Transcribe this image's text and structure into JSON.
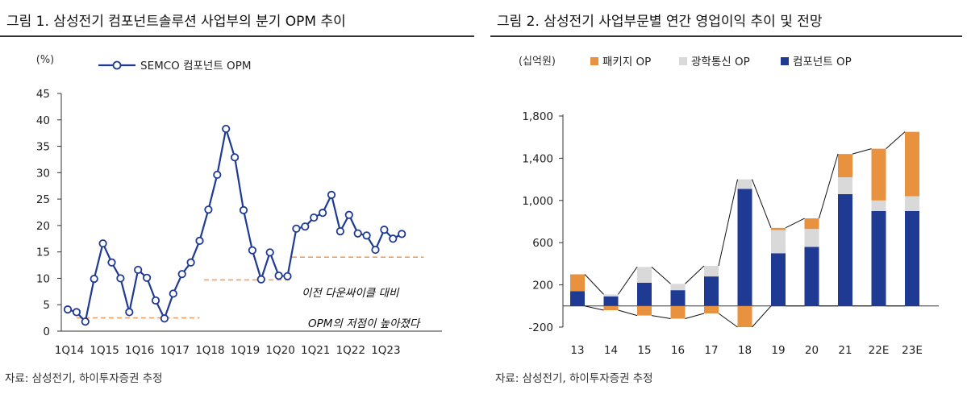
{
  "chart_data": [
    {
      "type": "line",
      "title": "그림 1. 삼성전기 컴포넌트솔루션 사업부의 분기 OPM 추이",
      "ylabel": "(%)",
      "ylim": [
        0,
        45
      ],
      "yticks": [
        0,
        5,
        10,
        15,
        20,
        25,
        30,
        35,
        40,
        45
      ],
      "x_tick_labels": [
        "1Q14",
        "1Q15",
        "1Q16",
        "1Q17",
        "1Q18",
        "1Q19",
        "1Q20",
        "1Q21",
        "1Q22",
        "1Q23"
      ],
      "series": [
        {
          "name": "SEMCO 컴포넌트 OPM",
          "color": "#1f3a93",
          "values": [
            4.1,
            3.6,
            1.8,
            9.9,
            16.6,
            13.0,
            10.0,
            3.6,
            11.6,
            10.1,
            5.8,
            2.4,
            7.1,
            10.8,
            13.0,
            17.1,
            23.0,
            29.6,
            38.3,
            32.9,
            22.9,
            15.3,
            9.8,
            14.9,
            10.5,
            10.4,
            19.4,
            19.8,
            21.5,
            22.4,
            25.8,
            18.9,
            22.0,
            18.5,
            18.1,
            15.4,
            19.2,
            17.5,
            18.4
          ]
        }
      ],
      "reference_lines": [
        {
          "x_from_index": 1,
          "x_to_index": 15,
          "value": 2.5,
          "color": "#f0a060"
        },
        {
          "x_from_index": 15.5,
          "x_to_index": 25.5,
          "value": 9.7,
          "color": "#f0a060"
        },
        {
          "x_from_index": 25.5,
          "x_to_index": 40.5,
          "value": 14.0,
          "color": "#f0a060"
        }
      ],
      "annotation": [
        "이전 다운싸이클 대비",
        "OPM의 저점이 높아졌다"
      ],
      "source": "자료: 삼성전기, 하이투자증권 추정"
    },
    {
      "type": "bar",
      "stacked": true,
      "title": "그림 2. 삼성전기 사업부문별 연간 영업이익 추이 및 전망",
      "ylabel": "(십억원)",
      "ylim": [
        -200,
        1800
      ],
      "yticks": [
        -200,
        200,
        600,
        1000,
        1400,
        1800
      ],
      "categories": [
        "13",
        "14",
        "15",
        "16",
        "17",
        "18",
        "19",
        "20",
        "21",
        "22E",
        "23E"
      ],
      "series": [
        {
          "name": "컴포넌트 OP",
          "color": "#1f3a93",
          "values": [
            140,
            90,
            220,
            150,
            280,
            1110,
            500,
            560,
            1060,
            900,
            900
          ]
        },
        {
          "name": "광학통신 OP",
          "color": "#d9d9d9",
          "values": [
            0,
            20,
            150,
            60,
            100,
            90,
            220,
            170,
            160,
            100,
            140
          ]
        },
        {
          "name": "패키지 OP",
          "color": "#e8913e",
          "values": [
            160,
            -40,
            -90,
            -120,
            -70,
            -200,
            20,
            100,
            220,
            490,
            610
          ]
        }
      ],
      "source": "자료: 삼성전기, 하이투자증권 추정"
    }
  ]
}
